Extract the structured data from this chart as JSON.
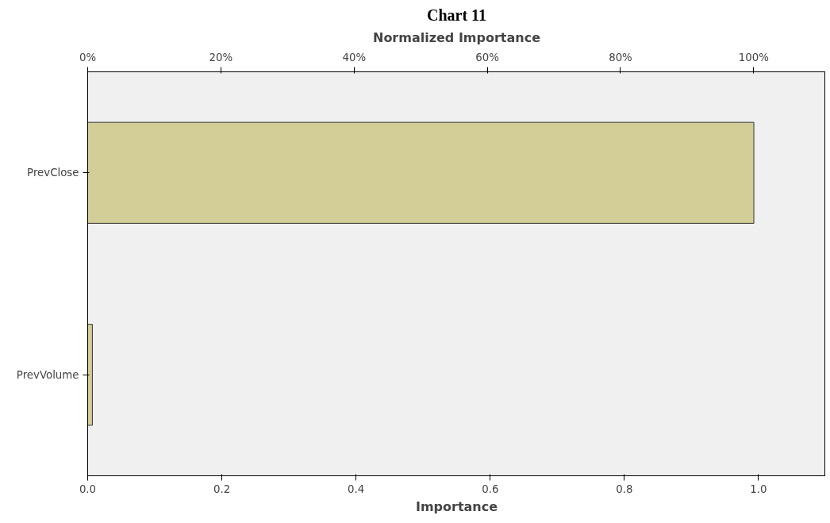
{
  "chart_data": {
    "type": "bar",
    "orientation": "horizontal",
    "title": "Chart 11",
    "categories": [
      "PrevClose",
      "PrevVolume"
    ],
    "series": [
      {
        "color": "#d3ce98",
        "values": [
          0.993,
          0.007
        ]
      }
    ],
    "xlabel": "Importance",
    "x2label": "Normalized Importance",
    "xlim": [
      0,
      1.1
    ],
    "xticks": [
      {
        "value": 0,
        "label": "0.0"
      },
      0.2,
      0.4,
      0.6,
      0.8,
      {
        "value": 1,
        "label": "1.0"
      }
    ],
    "x2lim": [
      0,
      110.8
    ],
    "x2ticks": [
      {
        "value": 0,
        "label": "0%"
      },
      {
        "value": 20,
        "label": "20%"
      },
      {
        "value": 40,
        "label": "40%"
      },
      {
        "value": 60,
        "label": "60%"
      },
      {
        "value": 80,
        "label": "80%"
      },
      {
        "value": 100,
        "label": "100%"
      }
    ],
    "grid": false
  }
}
